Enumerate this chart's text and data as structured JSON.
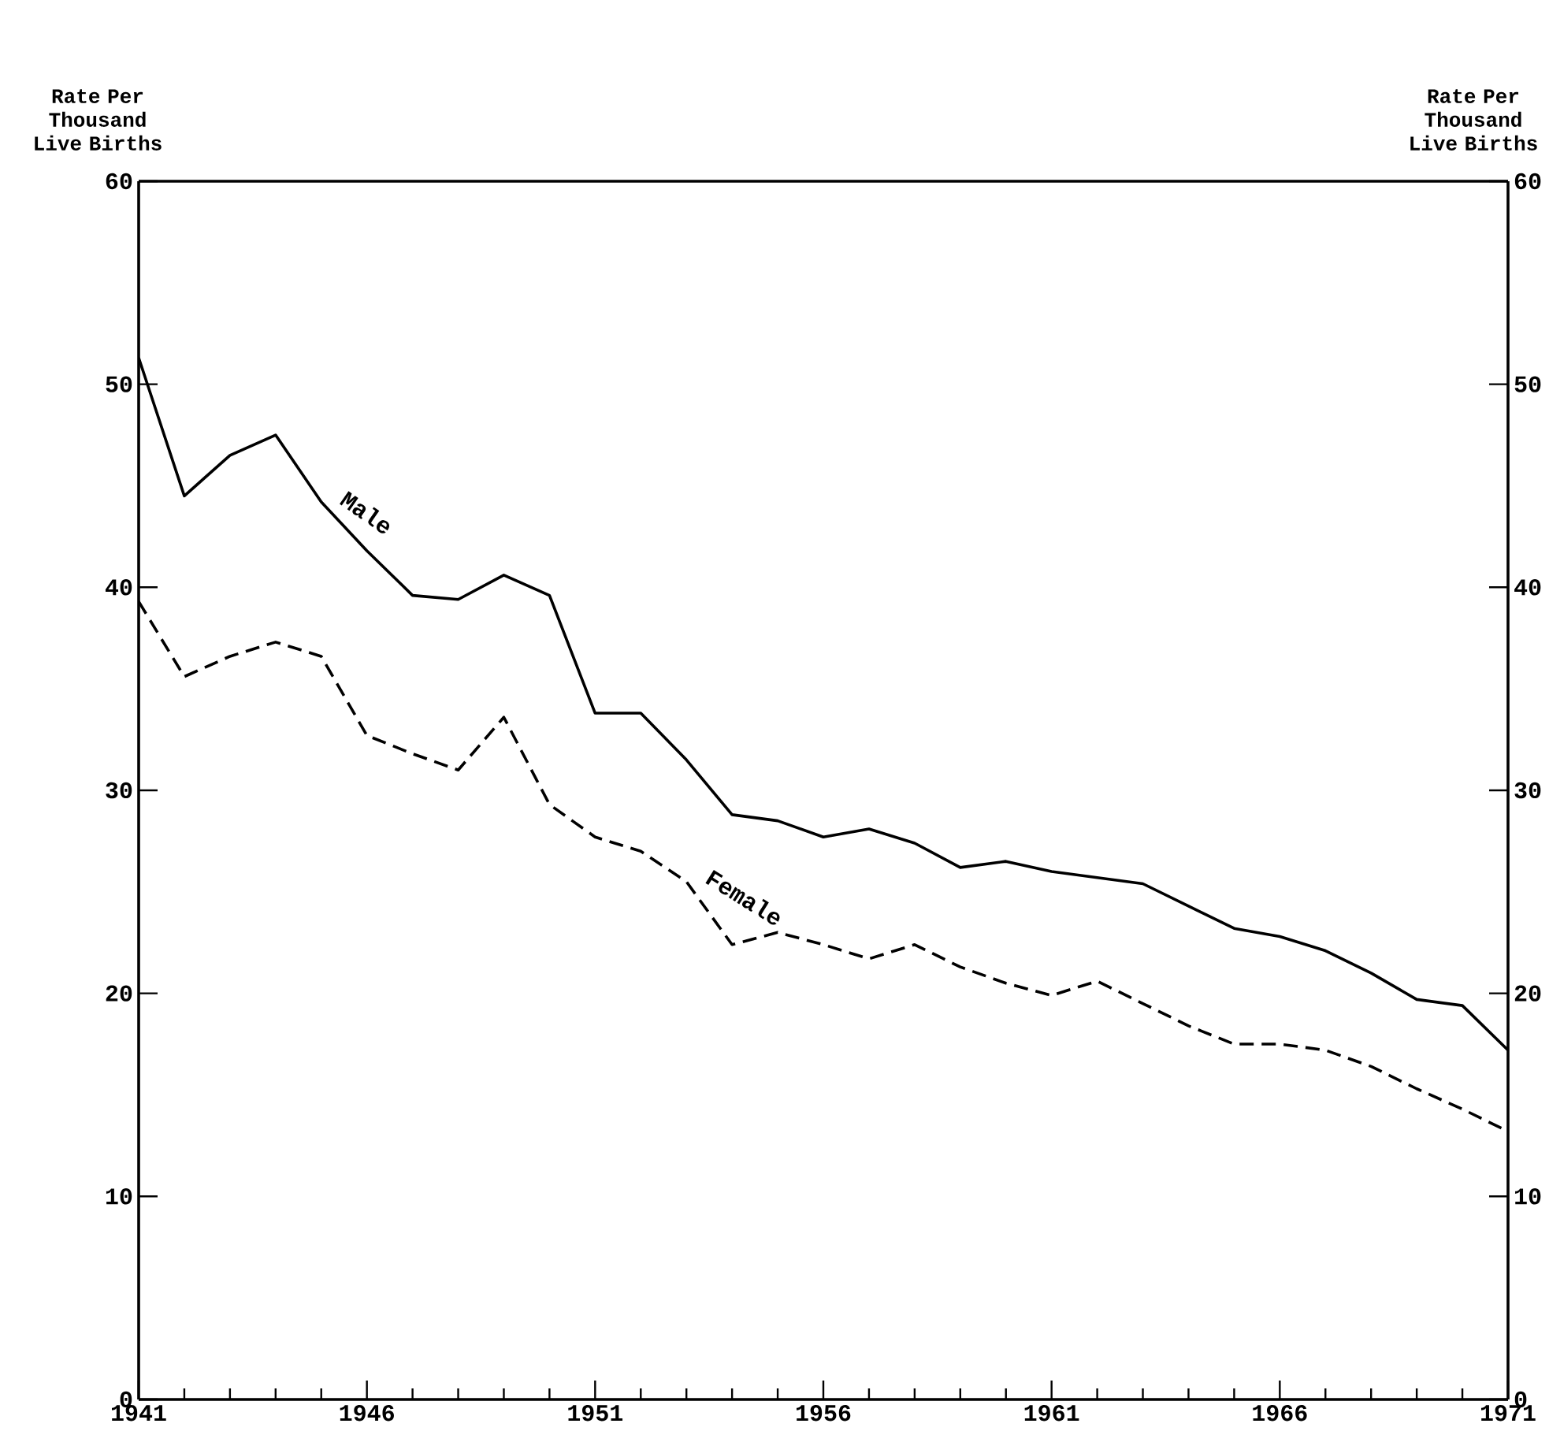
{
  "chart_data": {
    "type": "line",
    "ylabel": "Rate Per Thousand Live Births",
    "y2label": "Rate Per Thousand Live Births",
    "x": [
      1941,
      1942,
      1943,
      1944,
      1945,
      1946,
      1947,
      1948,
      1949,
      1950,
      1951,
      1952,
      1953,
      1954,
      1955,
      1956,
      1957,
      1958,
      1959,
      1960,
      1961,
      1962,
      1963,
      1964,
      1965,
      1966,
      1967,
      1968,
      1969,
      1970,
      1971
    ],
    "series": [
      {
        "name": "Male",
        "color": "#000000",
        "line_style": "solid",
        "values": [
          51.3,
          44.5,
          46.5,
          47.5,
          44.2,
          41.8,
          39.6,
          39.4,
          40.6,
          39.6,
          33.8,
          33.8,
          31.5,
          28.8,
          28.5,
          27.7,
          28.1,
          27.4,
          26.2,
          26.5,
          26.0,
          25.7,
          25.4,
          24.3,
          23.2,
          22.8,
          22.1,
          21.0,
          19.7,
          19.4,
          17.2
        ]
      },
      {
        "name": "Female",
        "color": "#000000",
        "line_style": "dashed",
        "values": [
          39.3,
          35.6,
          36.6,
          37.3,
          36.6,
          32.7,
          31.8,
          31.0,
          33.6,
          29.3,
          27.7,
          27.0,
          25.5,
          22.4,
          23.0,
          22.4,
          21.7,
          22.4,
          21.3,
          20.5,
          19.9,
          20.6,
          19.5,
          18.4,
          17.5,
          17.5,
          17.2,
          16.4,
          15.3,
          14.3,
          13.2
        ]
      }
    ],
    "xlim": [
      1941,
      1971
    ],
    "xticks": [
      1941,
      1946,
      1951,
      1956,
      1961,
      1966,
      1971
    ],
    "ylim": [
      0,
      60
    ],
    "yticks": [
      0,
      10,
      20,
      30,
      40,
      50,
      60
    ],
    "y2lim": [
      0,
      60
    ],
    "y2ticks": [
      0,
      10,
      20,
      30,
      40,
      50,
      60
    ],
    "grid": false,
    "legend": false,
    "marker": "none"
  }
}
